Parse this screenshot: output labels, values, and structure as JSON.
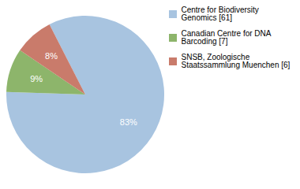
{
  "chart_data": {
    "type": "pie",
    "categories": [
      "Centre for Biodiversity\nGenomics [61]",
      "Canadian Centre for DNA\nBarcoding [7]",
      "SNSB, Zoologische\nStaatssammlung Muenchen [6]"
    ],
    "values": [
      83,
      9,
      8
    ],
    "value_labels": [
      "83%",
      "9%",
      "8%"
    ],
    "colors": [
      "#a8c4e0",
      "#8db56b",
      "#c97b6b"
    ],
    "data_labels": true,
    "legend": "upper right"
  }
}
